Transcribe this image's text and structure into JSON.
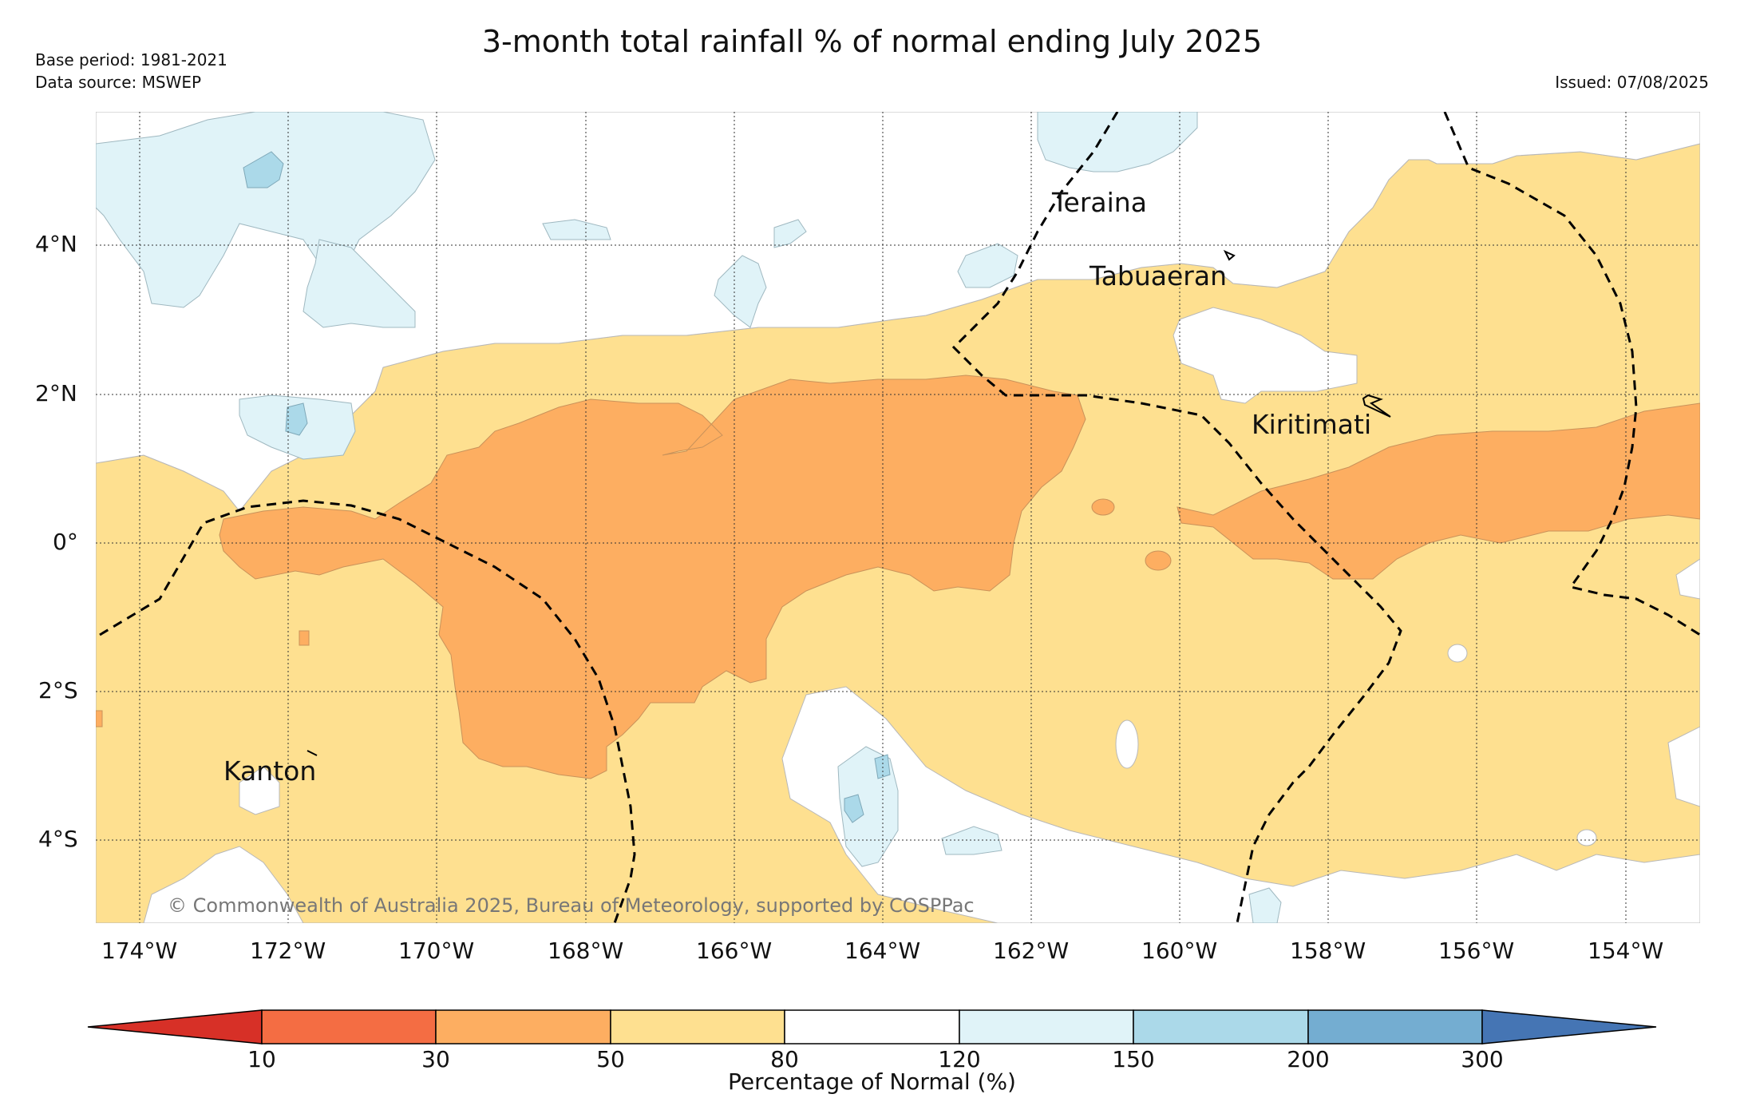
{
  "header": {
    "title": "3-month total rainfall % of normal ending July 2025",
    "base_period": "Base period: 1981-2021",
    "data_source": "Data source: MSWEP",
    "issued": "Issued: 07/08/2025"
  },
  "map": {
    "lon_ticks": [
      "174°W",
      "172°W",
      "170°W",
      "168°W",
      "166°W",
      "164°W",
      "162°W",
      "160°W",
      "158°W",
      "156°W",
      "154°W"
    ],
    "lat_ticks": [
      "4°N",
      "2°N",
      "0°",
      "2°S",
      "4°S"
    ],
    "places": {
      "teraina": "Teraina",
      "tabuaeran": "Tabuaeran",
      "kiritimati": "Kiritimati",
      "kanton": "Kanton"
    },
    "copyright": "© Commonwealth of Australia 2025, Bureau of Meteorology, supported by COSPPac",
    "category_colors": {
      "below_10": "#d73027",
      "10_30": "#f46d43",
      "30_50": "#fdae61",
      "50_80": "#fee090",
      "80_120": "#ffffff",
      "120_150": "#e0f3f8",
      "150_200": "#abd9e9",
      "200_300": "#74add1",
      "above_300": "#4575b4"
    }
  },
  "colorbar": {
    "labels": [
      "10",
      "30",
      "50",
      "80",
      "120",
      "150",
      "200",
      "300"
    ],
    "title": "Percentage of Normal (%)",
    "colors": [
      "#d73027",
      "#f46d43",
      "#fdae61",
      "#fee090",
      "#ffffff",
      "#e0f3f8",
      "#abd9e9",
      "#74add1",
      "#4575b4"
    ]
  }
}
